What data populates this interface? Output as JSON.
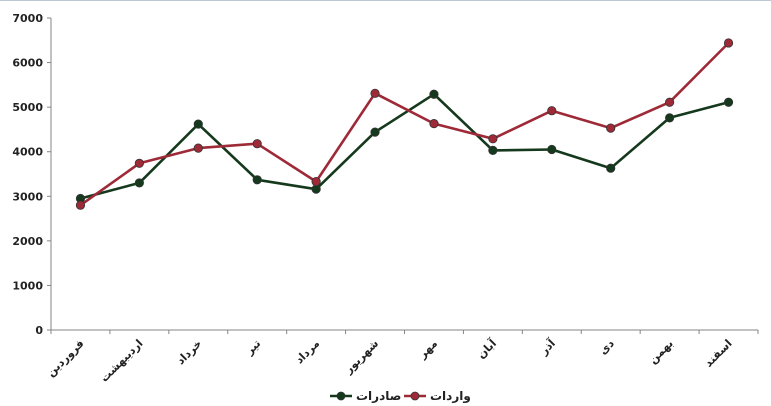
{
  "chart_data": {
    "type": "line",
    "categories": [
      "فروردین",
      "اردیبهشت",
      "خرداد",
      "تیر",
      "مرداد",
      "شهریور",
      "مهر",
      "آبان",
      "آذر",
      "دی",
      "بهمن",
      "اسفند"
    ],
    "ylim": [
      0,
      7000
    ],
    "yticks": [
      "0",
      "1000",
      "2000",
      "3000",
      "4000",
      "5000",
      "6000",
      "7000"
    ],
    "grid": false,
    "legend_position": "bottom",
    "series": [
      {
        "name": "صادرات",
        "color": "#15391c",
        "values": [
          2950,
          3300,
          4620,
          3370,
          3160,
          4440,
          5290,
          4030,
          4050,
          3630,
          4760,
          5110
        ]
      },
      {
        "name": "واردات",
        "color": "#9e2a38",
        "values": [
          2800,
          3740,
          4080,
          4180,
          3330,
          5310,
          4630,
          4290,
          4920,
          4530,
          5110,
          6440
        ]
      }
    ]
  }
}
